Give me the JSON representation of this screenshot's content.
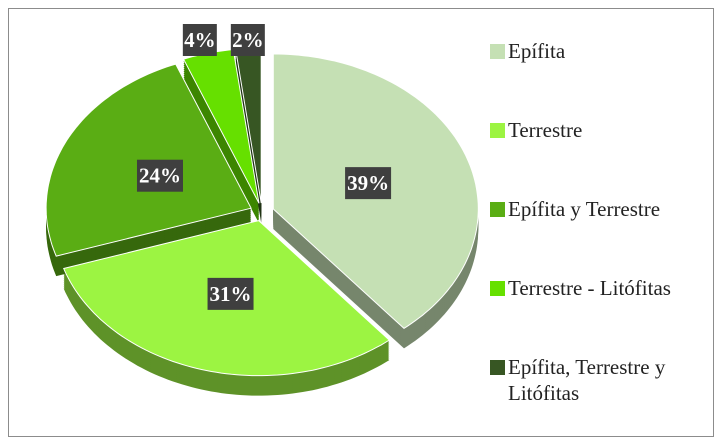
{
  "chart_data": {
    "type": "pie",
    "categories": [
      "Epífita",
      "Terrestre",
      "Epífita y Terrestre",
      "Terrestre - Litófitas",
      "Epífita, Terrestre y Litófitas"
    ],
    "values": [
      39,
      31,
      24,
      4,
      2
    ],
    "value_labels": [
      "39%",
      "31%",
      "24%",
      "4%",
      "2%"
    ],
    "colors": [
      "#c5e0b4",
      "#9cf442",
      "#5aad14",
      "#66e000",
      "#375623"
    ],
    "legend": "right"
  }
}
